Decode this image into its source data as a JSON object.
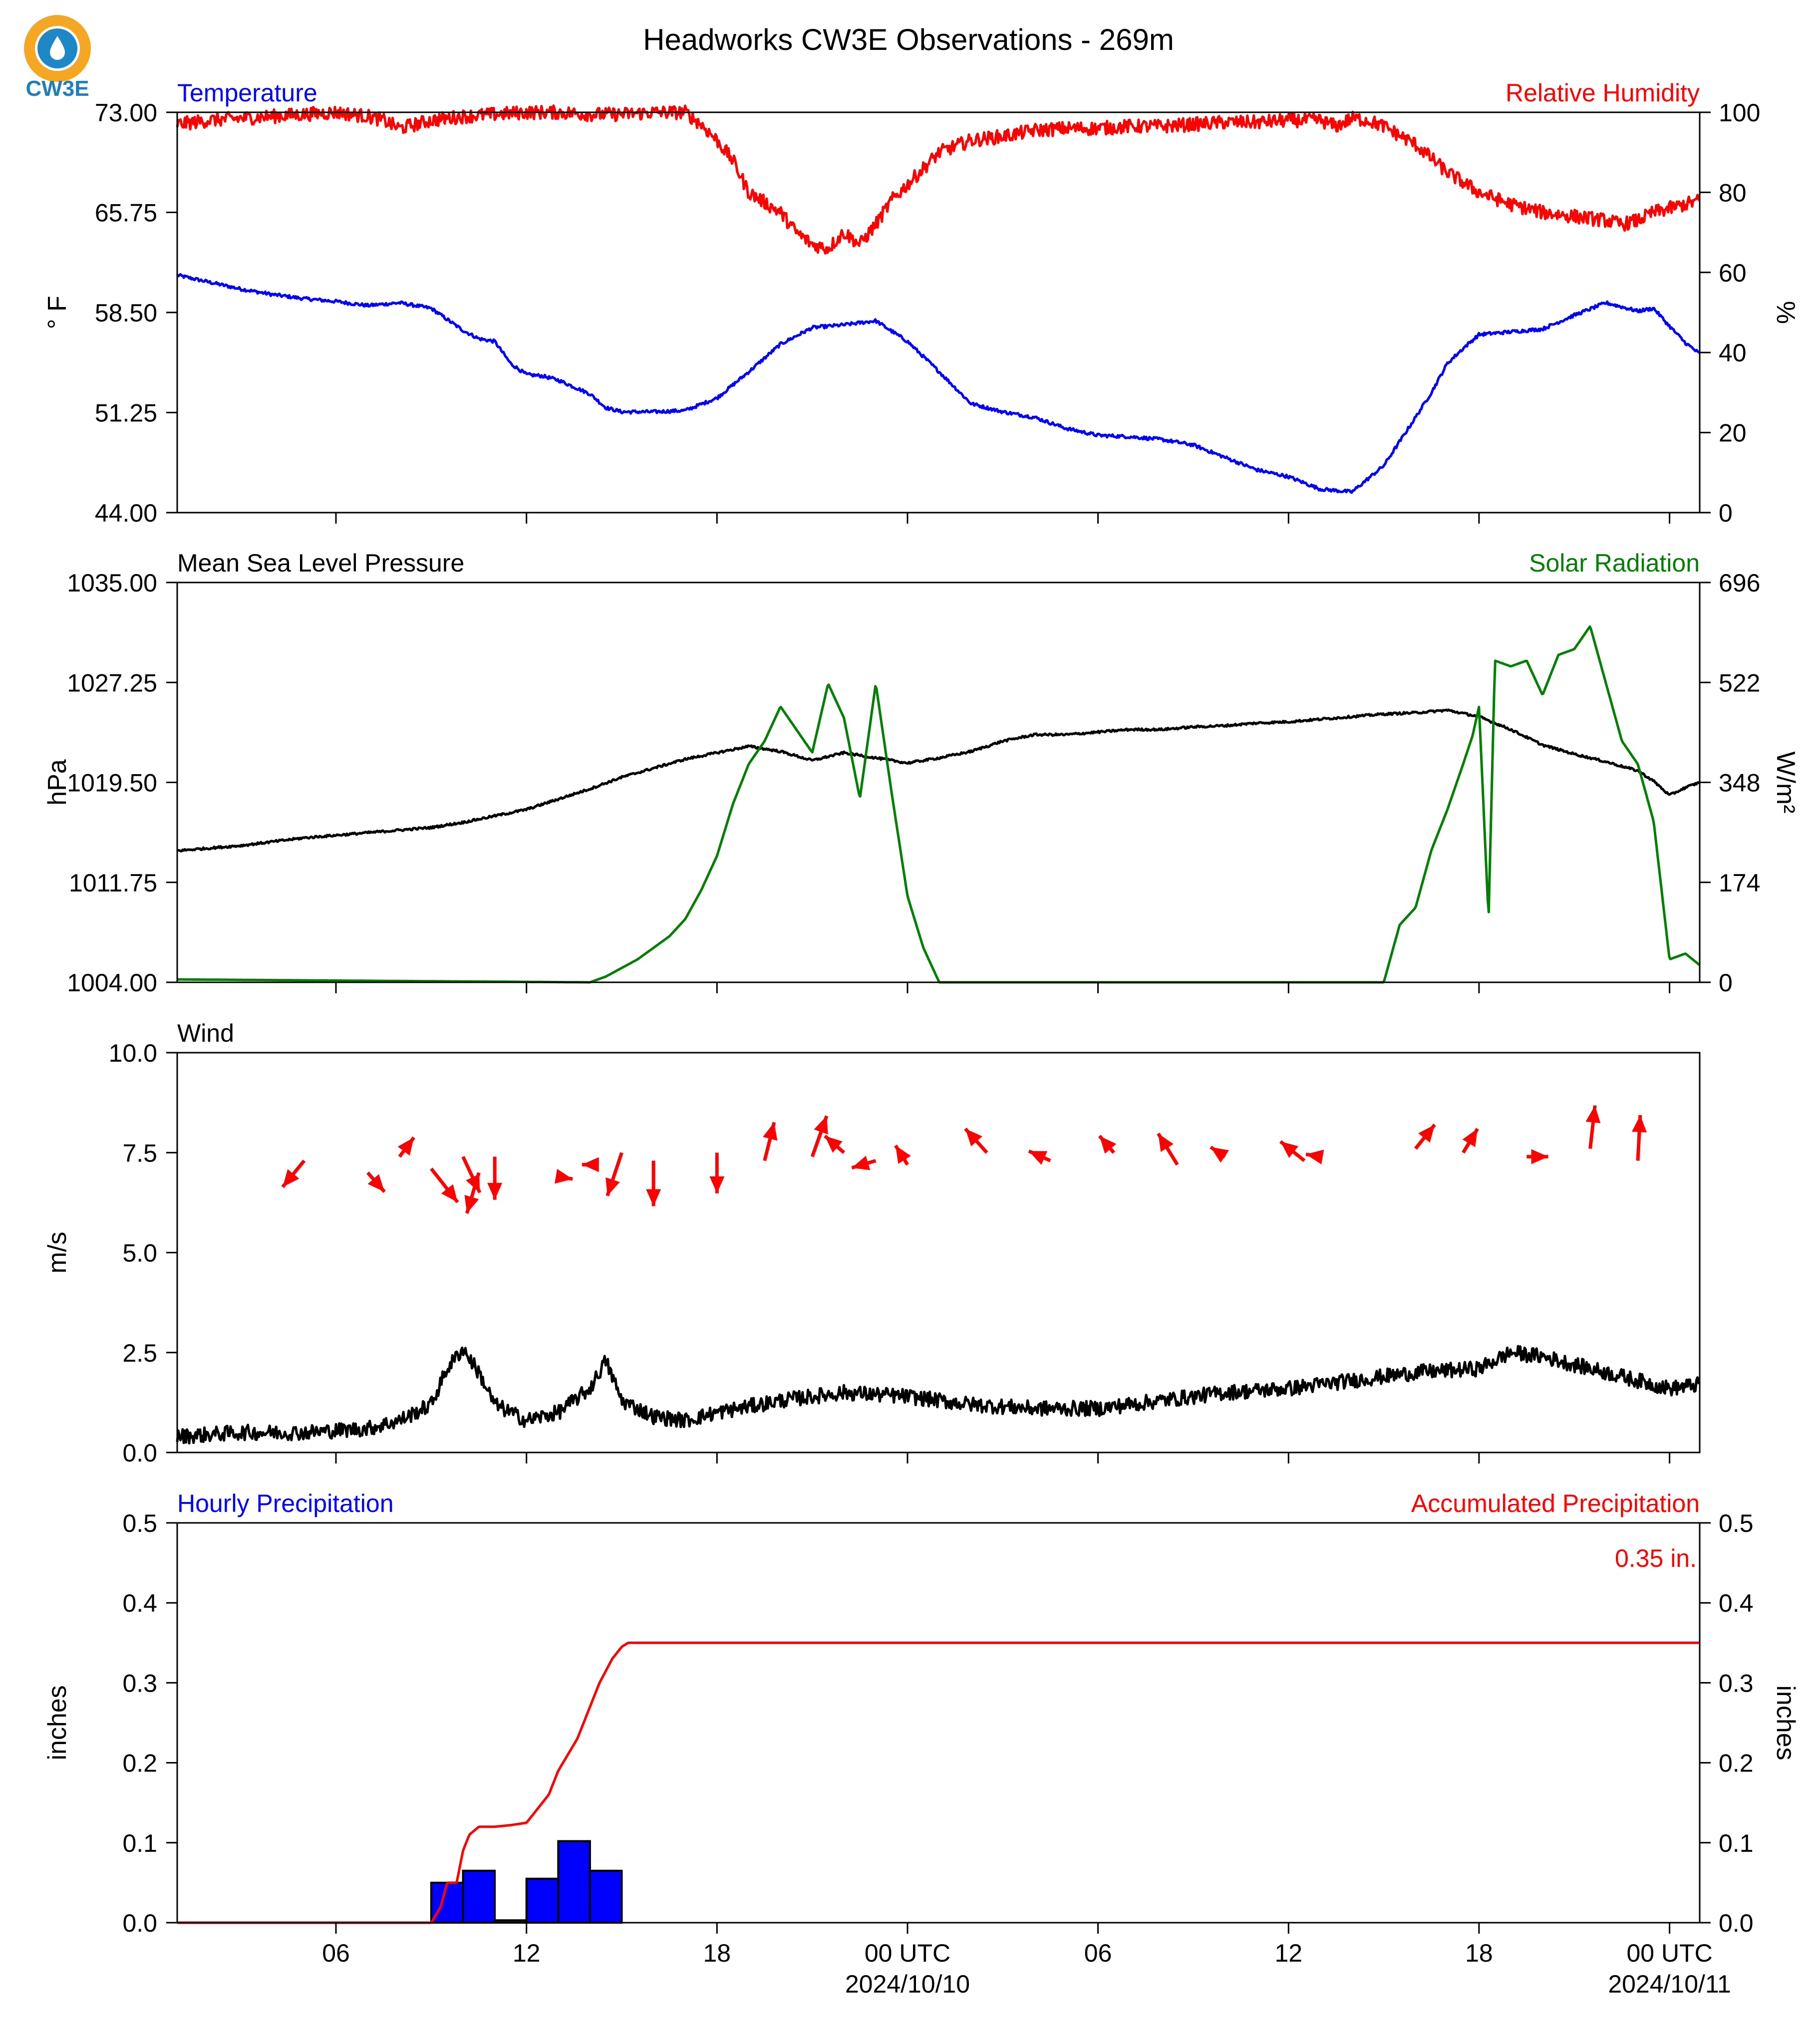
{
  "title": "Headworks CW3E Observations - 269m",
  "logo": {
    "text": "CW3E",
    "colors": {
      "ring": "#f5a623",
      "drop": "#1e88c7",
      "text": "#1f7fb8"
    }
  },
  "colors": {
    "blue": "#0000ff",
    "red": "#ff0000",
    "green": "#007f00",
    "black": "#000000"
  },
  "x_axis": {
    "tick_labels": [
      "06",
      "12",
      "18",
      "00 UTC",
      "06",
      "12",
      "18",
      "00 UTC"
    ],
    "tick_hours": [
      6,
      12,
      18,
      24,
      30,
      36,
      42,
      48
    ],
    "date_labels": [
      {
        "hour": 24,
        "text": "2024/10/10"
      },
      {
        "hour": 48,
        "text": "2024/10/11"
      }
    ],
    "range_hours": [
      1,
      48.95
    ]
  },
  "chart_data": [
    {
      "type": "line",
      "title_left": "Temperature",
      "title_right": "Relative Humidity",
      "ylabel_left": "° F",
      "ylabel_right": "%",
      "ylim_left": [
        44.0,
        73.0
      ],
      "ylim_right": [
        0,
        100
      ],
      "yticks_left": [
        "44.00",
        "51.25",
        "58.50",
        "65.75",
        "73.00"
      ],
      "yticks_right": [
        "0",
        "20",
        "40",
        "60",
        "80",
        "100"
      ],
      "series": [
        {
          "axis": "left",
          "color": "#0000ff",
          "noise": 0.12,
          "x": [
            1,
            2,
            3,
            4,
            5,
            6,
            7,
            8,
            9,
            10,
            10.5,
            11,
            11.5,
            12,
            12.5,
            13,
            14,
            14.5,
            15,
            16,
            17,
            18,
            19,
            20,
            21,
            22,
            23,
            24,
            25,
            26,
            27,
            28,
            29,
            30,
            31,
            32,
            33,
            34,
            35,
            36,
            37,
            38,
            39,
            40,
            40.5,
            41,
            41.5,
            42,
            43,
            44,
            45,
            46,
            47,
            47.5,
            48,
            48.5,
            48.95
          ],
          "y": [
            61.2,
            60.7,
            60.2,
            59.8,
            59.5,
            59.3,
            59.0,
            59.2,
            58.8,
            57.2,
            56.6,
            56.4,
            54.8,
            54.0,
            53.9,
            53.6,
            52.6,
            51.6,
            51.3,
            51.3,
            51.4,
            52.3,
            54.2,
            56.2,
            57.4,
            57.6,
            57.9,
            56.4,
            54.2,
            51.9,
            51.3,
            50.9,
            50.1,
            49.6,
            49.5,
            49.3,
            48.9,
            48.0,
            47.1,
            46.6,
            45.7,
            45.5,
            47.4,
            50.9,
            52.7,
            54.8,
            55.9,
            56.9,
            57.1,
            57.3,
            58.3,
            59.2,
            58.6,
            58.8,
            57.5,
            56.3,
            55.5
          ]
        },
        {
          "axis": "right",
          "color": "#ff0000",
          "noise": 0.5,
          "x": [
            1,
            2,
            3,
            4,
            5,
            6,
            7,
            7.5,
            8,
            9,
            10,
            11,
            12,
            13,
            14,
            15,
            16,
            17,
            17.5,
            18,
            18.5,
            19,
            20,
            20.5,
            21,
            21.5,
            22,
            22.5,
            23,
            23.5,
            24,
            25,
            26,
            27,
            28,
            29,
            30,
            31,
            32,
            33,
            34,
            35,
            36,
            37,
            37.5,
            38,
            38.5,
            39,
            40,
            41,
            42,
            43,
            44,
            45,
            46,
            46.5,
            47,
            47.5,
            48,
            48.95
          ],
          "y": [
            97,
            98,
            98.5,
            99,
            99.5,
            100,
            99,
            98,
            96,
            98,
            99,
            99.5,
            100,
            100,
            99.5,
            99.5,
            100,
            100,
            97,
            93,
            88,
            80,
            75,
            70,
            67,
            66,
            70,
            67,
            72,
            78,
            82,
            90,
            93,
            94,
            95.5,
            96,
            96,
            96.5,
            96.5,
            97,
            97.5,
            97.5,
            98,
            98,
            96.5,
            98.5,
            98,
            96.5,
            92,
            85,
            80,
            77,
            75,
            74,
            73,
            72,
            73,
            75,
            76,
            78
          ]
        }
      ]
    },
    {
      "type": "line",
      "title_left": "Mean Sea Level Pressure",
      "title_right": "Solar Radiation",
      "ylabel_left": "hPa",
      "ylabel_right": "W/m²",
      "ylim_left": [
        1004.0,
        1035.0
      ],
      "ylim_right": [
        0,
        696
      ],
      "yticks_left": [
        "1004.00",
        "1011.75",
        "1019.50",
        "1027.25",
        "1035.00"
      ],
      "yticks_right": [
        "0",
        "174",
        "348",
        "522",
        "696"
      ],
      "series": [
        {
          "axis": "left",
          "color": "#000000",
          "noise": 0.08,
          "x": [
            1,
            2,
            3,
            4,
            5,
            6,
            7,
            8,
            9,
            10,
            11,
            12,
            13,
            14,
            15,
            16,
            17,
            18,
            19,
            20,
            21,
            22,
            23,
            24,
            25,
            26,
            27,
            28,
            29,
            30,
            31,
            32,
            33,
            34,
            35,
            36,
            37,
            38,
            39,
            40,
            41,
            42,
            43,
            44,
            45,
            46,
            47,
            47.5,
            48,
            48.5,
            48.95
          ],
          "y": [
            1014.2,
            1014.4,
            1014.6,
            1014.9,
            1015.2,
            1015.4,
            1015.6,
            1015.8,
            1016.0,
            1016.4,
            1016.9,
            1017.4,
            1018.2,
            1019.0,
            1019.9,
            1020.6,
            1021.3,
            1021.8,
            1022.3,
            1021.9,
            1021.2,
            1021.8,
            1021.4,
            1021.0,
            1021.4,
            1021.9,
            1022.7,
            1023.2,
            1023.2,
            1023.4,
            1023.6,
            1023.6,
            1023.8,
            1023.9,
            1024.1,
            1024.2,
            1024.4,
            1024.6,
            1024.8,
            1024.9,
            1025.1,
            1024.6,
            1023.6,
            1022.4,
            1021.7,
            1021.1,
            1020.4,
            1019.6,
            1018.5,
            1019.1,
            1019.5
          ]
        },
        {
          "axis": "right",
          "color": "#007f00",
          "noise": 0,
          "x": [
            1,
            14,
            14.5,
            15.5,
            16.5,
            17,
            17.5,
            18,
            18.5,
            19,
            19.5,
            20,
            20.5,
            21,
            21.5,
            22,
            22.5,
            23,
            23.5,
            24,
            24.5,
            25,
            26,
            30,
            38,
            39,
            39.2,
            39.5,
            40,
            40.5,
            41,
            41.5,
            41.8,
            42,
            42.3,
            42.5,
            43,
            43.5,
            44,
            44.5,
            45,
            45.5,
            46,
            46.5,
            47,
            47.5,
            48,
            48.5,
            48.95
          ],
          "y": [
            5,
            0,
            10,
            40,
            80,
            110,
            160,
            220,
            310,
            380,
            420,
            480,
            440,
            400,
            520,
            460,
            320,
            520,
            330,
            150,
            60,
            0,
            0,
            0,
            0,
            0,
            40,
            100,
            130,
            230,
            300,
            380,
            430,
            480,
            110,
            560,
            550,
            560,
            500,
            570,
            580,
            620,
            520,
            420,
            380,
            280,
            40,
            50,
            30
          ]
        }
      ]
    },
    {
      "type": "line",
      "title_left": "Wind",
      "ylabel_left": "m/s",
      "ylim_left": [
        0.0,
        10.0
      ],
      "yticks_left": [
        "0.0",
        "2.5",
        "5.0",
        "7.5",
        "10.0"
      ],
      "series": [
        {
          "axis": "left",
          "color": "#000000",
          "noise": 0.55,
          "x": [
            1,
            3,
            5,
            7,
            8,
            9,
            9.5,
            10,
            10.5,
            11,
            12,
            13,
            14,
            14.5,
            15,
            16,
            17,
            18,
            20,
            22,
            24,
            26,
            28,
            30,
            32,
            34,
            36,
            38,
            40,
            42,
            43,
            44,
            46,
            48,
            48.95
          ],
          "y": [
            0.4,
            0.5,
            0.5,
            0.6,
            0.8,
            1.2,
            2.1,
            2.6,
            2.0,
            1.2,
            0.8,
            1.0,
            1.6,
            2.3,
            1.3,
            0.9,
            0.8,
            1.0,
            1.3,
            1.5,
            1.4,
            1.2,
            1.1,
            1.1,
            1.3,
            1.5,
            1.6,
            1.8,
            2.0,
            2.1,
            2.5,
            2.4,
            2.0,
            1.6,
            1.7
          ]
        }
      ],
      "wind_barbs": {
        "color": "#ff0000",
        "base_y": [
          7.3,
          7.0,
          7.4,
          7.1,
          7.4,
          7.0,
          7.4,
          6.9,
          7.2,
          7.5,
          7.3,
          7.5,
          7.3,
          7.4,
          7.5,
          7.3,
          7.2,
          7.5,
          7.3,
          7.5,
          7.2,
          7.4,
          7.3,
          7.4,
          7.6,
          7.5,
          7.4,
          7.6,
          7.3
        ],
        "x": [
          5.0,
          7.0,
          8.0,
          9.0,
          10.0,
          10.5,
          11.0,
          13.0,
          14.2,
          15.0,
          16.0,
          18.0,
          19.5,
          21.0,
          22.0,
          23.0,
          24.0,
          26.5,
          28.5,
          30.5,
          32.5,
          34.0,
          36.5,
          37.0,
          40.0,
          41.5,
          43.5,
          45.5,
          47.0
        ],
        "u": [
          -0.9,
          0.7,
          0.6,
          1.1,
          0.7,
          -0.5,
          0.0,
          0.6,
          -0.6,
          -0.6,
          0.0,
          0.0,
          0.4,
          0.6,
          -0.8,
          -1.0,
          -0.5,
          -0.9,
          -0.9,
          -0.6,
          -0.8,
          -0.6,
          -1.0,
          -0.6,
          0.8,
          0.6,
          0.9,
          0.2,
          0.1
        ],
        "v": [
          -1.1,
          -0.8,
          0.8,
          -1.4,
          -1.5,
          -1.7,
          -1.8,
          -0.1,
          0.0,
          -1.8,
          -1.9,
          -1.7,
          1.6,
          1.7,
          0.7,
          -0.3,
          0.8,
          1.0,
          0.4,
          0.7,
          1.3,
          0.4,
          0.8,
          0.1,
          1.0,
          1.0,
          0.0,
          1.8,
          1.9
        ]
      }
    },
    {
      "type": "bar",
      "title_left": "Hourly Precipitation",
      "title_right": "Accumulated Precipitation",
      "accum_label": "0.35 in.",
      "ylabel_left": "inches",
      "ylabel_right": "inches",
      "ylim_left": [
        0.0,
        0.5
      ],
      "ylim_right": [
        0.0,
        0.5
      ],
      "yticks_left": [
        "0.0",
        "0.1",
        "0.2",
        "0.3",
        "0.4",
        "0.5"
      ],
      "yticks_right": [
        "0.0",
        "0.1",
        "0.2",
        "0.3",
        "0.4",
        "0.5"
      ],
      "bars": {
        "color": "#0000ff",
        "start_hour": [
          9,
          10,
          11,
          12,
          13,
          14
        ],
        "values": [
          0.05,
          0.065,
          0.003,
          0.055,
          0.102,
          0.065
        ]
      },
      "series": [
        {
          "axis": "right",
          "color": "#ff0000",
          "noise": 0,
          "x": [
            1,
            9.0,
            9.3,
            9.5,
            9.8,
            10.0,
            10.2,
            10.5,
            11.0,
            11.5,
            12.0,
            12.3,
            12.7,
            13.0,
            13.3,
            13.6,
            14.0,
            14.3,
            14.7,
            15.0,
            15.2,
            48.95
          ],
          "y": [
            0,
            0,
            0.02,
            0.05,
            0.05,
            0.09,
            0.11,
            0.12,
            0.12,
            0.122,
            0.125,
            0.14,
            0.16,
            0.19,
            0.21,
            0.23,
            0.27,
            0.3,
            0.33,
            0.345,
            0.35,
            0.35
          ]
        }
      ]
    }
  ]
}
